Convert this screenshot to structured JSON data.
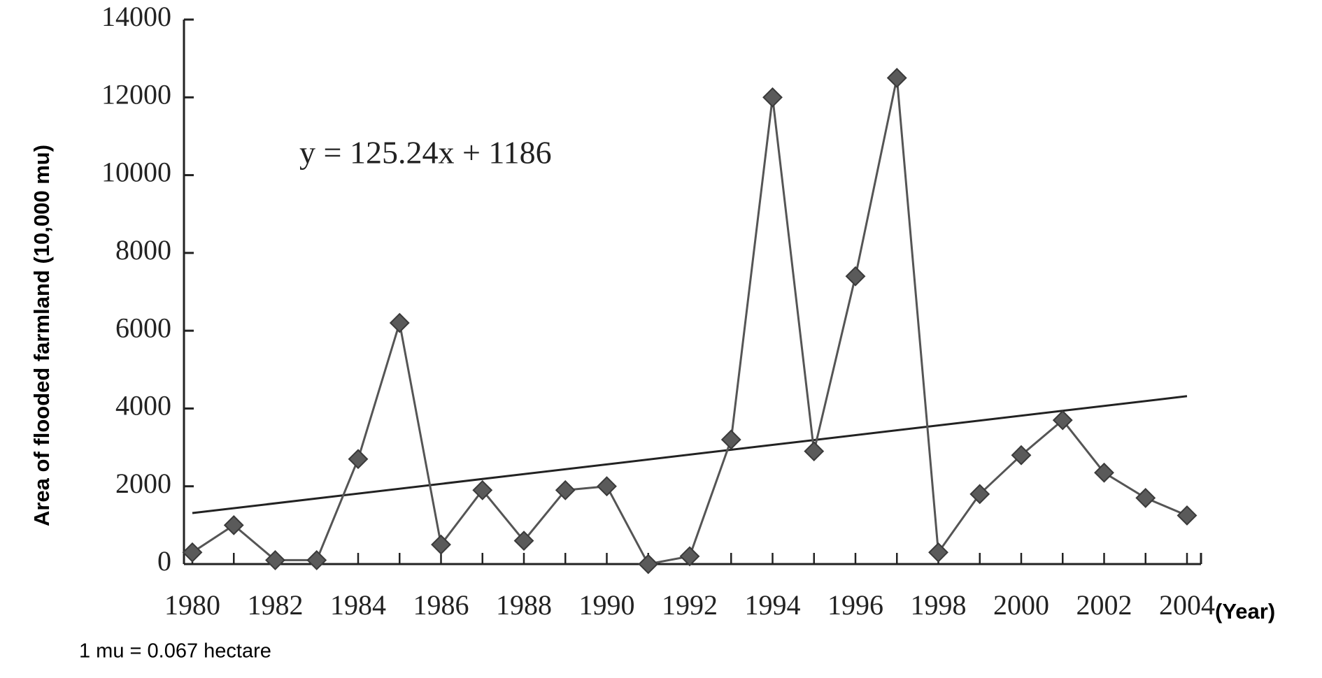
{
  "chart_data": {
    "type": "line",
    "x_label": "(Year)",
    "y_label": "Area of flooded farmland (10,000 mu)",
    "note": "1 mu = 0.067 hectare",
    "x": [
      1980,
      1981,
      1982,
      1983,
      1984,
      1985,
      1986,
      1987,
      1988,
      1989,
      1990,
      1991,
      1992,
      1993,
      1994,
      1995,
      1996,
      1997,
      1998,
      1999,
      2000,
      2001,
      2002,
      2003,
      2004
    ],
    "series": [
      {
        "name": "Area of flooded farmland",
        "color": "#555555",
        "values": [
          300,
          1000,
          100,
          100,
          2700,
          6200,
          500,
          1900,
          600,
          1900,
          2000,
          0,
          200,
          3200,
          12000,
          2900,
          7400,
          12500,
          300,
          1800,
          2800,
          3700,
          2350,
          1700,
          1250
        ]
      }
    ],
    "trendline": {
      "label": "y = 125.24x + 1186",
      "slope": 125.24,
      "intercept": 1186
    },
    "xlim": [
      1980,
      2004
    ],
    "xticks": [
      1980,
      1982,
      1984,
      1986,
      1988,
      1990,
      1992,
      1994,
      1996,
      1998,
      2000,
      2002,
      2004
    ],
    "ylim": [
      0,
      14000
    ],
    "yticks": [
      0,
      2000,
      4000,
      6000,
      8000,
      10000,
      12000,
      14000
    ]
  }
}
